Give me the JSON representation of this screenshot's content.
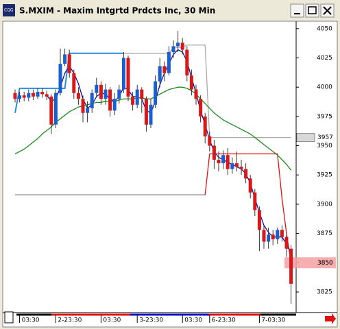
{
  "chart_data": {
    "type": "candlestick",
    "title": "S.MXIM - Maxim Intgrtd Prdcts Inc, 30 Min",
    "categories": [
      null,
      "03:30",
      null,
      null,
      null,
      null,
      null,
      null,
      null,
      "2-23:30",
      null,
      null,
      null,
      null,
      null,
      null,
      null,
      null,
      null,
      "03:30",
      null,
      null,
      null,
      null,
      null,
      null,
      null,
      "3-23:30",
      null,
      null,
      null,
      null,
      null,
      null,
      null,
      null,
      null,
      "03:30",
      null,
      null,
      null,
      null,
      null,
      "6-23:30",
      null,
      null,
      null,
      null,
      null,
      null,
      null,
      null,
      null,
      null,
      "7-03:30",
      null,
      null,
      null,
      null,
      null,
      null,
      null
    ],
    "ylim": [
      3808,
      4054
    ],
    "yticks": [
      3825,
      3850,
      3875,
      3900,
      3925,
      3950,
      3975,
      4000,
      4025,
      4050
    ],
    "up_color": "#1a5fd0",
    "down_color": "#d81818",
    "open": [
      3995,
      3990,
      3993,
      3991,
      3995,
      3992,
      3996,
      3994,
      3992,
      3968,
      3995,
      4020,
      4028,
      4012,
      3995,
      3990,
      3978,
      3982,
      3995,
      4002,
      3990,
      3998,
      3980,
      3990,
      3998,
      4025,
      3992,
      3985,
      3998,
      3990,
      3968,
      3985,
      4005,
      4018,
      4012,
      4030,
      4035,
      4038,
      4032,
      4010,
      3998,
      3990,
      3975,
      3958,
      3950,
      3938,
      3935,
      3942,
      3930,
      3935,
      3932,
      3930,
      3922,
      3910,
      3895,
      3878,
      3868,
      3874,
      3870,
      3878,
      3872,
      3862
    ],
    "high": [
      3998,
      3996,
      3996,
      3998,
      3998,
      3999,
      3999,
      3997,
      3994,
      3998,
      4033,
      4033,
      4032,
      4015,
      4000,
      3993,
      3988,
      3998,
      4008,
      4005,
      4003,
      4000,
      3995,
      4002,
      4030,
      4027,
      3996,
      4002,
      4000,
      3992,
      3990,
      4010,
      4025,
      4022,
      4035,
      4040,
      4048,
      4042,
      4035,
      4015,
      4002,
      3993,
      3978,
      3962,
      3955,
      3945,
      3946,
      3948,
      3940,
      3945,
      3938,
      3935,
      3925,
      3913,
      3898,
      3882,
      3880,
      3878,
      3880,
      3882,
      3876,
      3865
    ],
    "low": [
      3987,
      3987,
      3988,
      3988,
      3989,
      3990,
      3991,
      3989,
      3960,
      3965,
      3993,
      4018,
      4008,
      3990,
      3985,
      3970,
      3970,
      3978,
      3992,
      3985,
      3985,
      3975,
      3976,
      3986,
      3995,
      3988,
      3980,
      3982,
      3978,
      3962,
      3965,
      3982,
      4000,
      4005,
      4010,
      4025,
      4030,
      4028,
      4005,
      3993,
      3985,
      3970,
      3952,
      3945,
      3930,
      3928,
      3930,
      3925,
      3926,
      3928,
      3925,
      3918,
      3905,
      3890,
      3860,
      3862,
      3862,
      3865,
      3866,
      3868,
      3855,
      3815
    ],
    "close": [
      3990,
      3993,
      3991,
      3995,
      3992,
      3996,
      3994,
      3992,
      3968,
      3995,
      4020,
      4028,
      4012,
      3995,
      3990,
      3978,
      3982,
      3995,
      4002,
      3990,
      3998,
      3980,
      3990,
      3998,
      4025,
      3992,
      3985,
      3998,
      3990,
      3968,
      3985,
      4005,
      4018,
      4012,
      4030,
      4035,
      4038,
      4032,
      4010,
      3998,
      3990,
      3975,
      3958,
      3950,
      3938,
      3935,
      3942,
      3930,
      3935,
      3932,
      3930,
      3922,
      3910,
      3895,
      3878,
      3868,
      3874,
      3870,
      3878,
      3872,
      3862,
      3832
    ],
    "lines": [
      {
        "color": "#aaaaaa",
        "values": [
          null,
          null,
          null,
          null,
          null,
          null,
          null,
          null,
          null,
          null,
          null,
          null,
          null,
          4029,
          4029,
          4029,
          4029,
          4029,
          4029,
          4029,
          4029,
          4029,
          4029,
          4029,
          4029,
          4029,
          4029,
          4029,
          4029,
          4029,
          4029,
          4029,
          4029,
          4029,
          4029,
          4034,
          4034,
          4034,
          4036,
          4036,
          4036,
          4036,
          4036,
          3957,
          3957,
          3957,
          3957,
          3957,
          3957,
          3957,
          3957,
          3957,
          3957,
          3957,
          3957,
          3957,
          3957,
          3957,
          3957,
          3957,
          3957,
          3957
        ]
      },
      {
        "color": "#808080",
        "values": [
          3908,
          3908,
          3908,
          3908,
          3908,
          3908,
          3908,
          3908,
          3908,
          3908,
          3908,
          3908,
          3908,
          3908,
          3908,
          3908,
          3908,
          3908,
          3908,
          3908,
          3908,
          3908,
          3908,
          3908,
          3908,
          3908,
          3908,
          3908,
          3908,
          3908,
          3908,
          3908,
          3908,
          3908,
          3908,
          3908,
          3908,
          3908,
          3908,
          3908,
          3908,
          3908,
          3908,
          null,
          null,
          null,
          null,
          null,
          null,
          null,
          null,
          null,
          null,
          null,
          null,
          null,
          null,
          null,
          null,
          null,
          null,
          null
        ]
      },
      {
        "color": "#e01010",
        "values": [
          null,
          null,
          null,
          null,
          null,
          null,
          null,
          null,
          null,
          null,
          null,
          null,
          null,
          null,
          null,
          null,
          null,
          null,
          null,
          null,
          null,
          null,
          null,
          null,
          null,
          null,
          null,
          null,
          null,
          null,
          null,
          null,
          null,
          null,
          null,
          null,
          null,
          null,
          null,
          null,
          null,
          null,
          3908,
          3943,
          3943,
          3943,
          3943,
          3943,
          3943,
          3943,
          3943,
          3943,
          3943,
          3943,
          3943,
          3943,
          3943,
          3943,
          3943,
          3905,
          3875,
          3850
        ]
      },
      {
        "color": "#2a8ae0",
        "values": [
          3978,
          3999,
          3999,
          3999,
          3999,
          3999,
          3999,
          3999,
          3999,
          3999,
          3999,
          3999,
          4029,
          4029,
          4029,
          4029,
          4029,
          4029,
          4029,
          4029,
          4029,
          4029,
          4029,
          4029,
          4029,
          null,
          null,
          null,
          null,
          null,
          null,
          null,
          null,
          null,
          null,
          null,
          null,
          null,
          null,
          null,
          null,
          null,
          null,
          null,
          null,
          null,
          null,
          null,
          null,
          null,
          null,
          null,
          null,
          null,
          null,
          null,
          null,
          null,
          null,
          null,
          null,
          null
        ]
      },
      {
        "color": "#1010a0",
        "values": [
          null,
          null,
          null,
          null,
          null,
          null,
          null,
          3993,
          3988,
          3990,
          4000,
          4012,
          4018,
          4012,
          4003,
          3990,
          3982,
          3985,
          3992,
          3995,
          3994,
          3990,
          3988,
          3992,
          4000,
          3998,
          3992,
          3992,
          3990,
          3980,
          3978,
          3988,
          4002,
          4012,
          4020,
          4028,
          4032,
          4030,
          4022,
          4008,
          3995,
          3980,
          3968,
          3955,
          3945,
          3940,
          3938,
          3936,
          3934,
          3932,
          3930,
          3926,
          3918,
          3905,
          3893,
          3882,
          3876,
          3872,
          3872,
          3872,
          3866,
          3858
        ]
      },
      {
        "color": "#1a8a1a",
        "values": [
          3943,
          3945,
          3947,
          3950,
          3953,
          3956,
          3960,
          3963,
          3966,
          3970,
          3973,
          3976,
          3979,
          3981,
          3983,
          3984,
          3985,
          3986,
          3987,
          3987,
          3988,
          3988,
          3988,
          3989,
          3990,
          3990,
          3990,
          3991,
          3991,
          3990,
          3990,
          3992,
          3994,
          3996,
          3998,
          3999,
          4000,
          4000,
          3999,
          3997,
          3994,
          3990,
          3986,
          3982,
          3978,
          3975,
          3972,
          3970,
          3968,
          3966,
          3964,
          3962,
          3960,
          3957,
          3954,
          3951,
          3948,
          3945,
          3942,
          3938,
          3934,
          3929
        ]
      }
    ],
    "price_labels": [
      {
        "value": 3957,
        "label": "3957",
        "color": "#d8d8d8"
      },
      {
        "value": 3850,
        "label": "3850",
        "color": "#f4a0a0"
      }
    ]
  }
}
